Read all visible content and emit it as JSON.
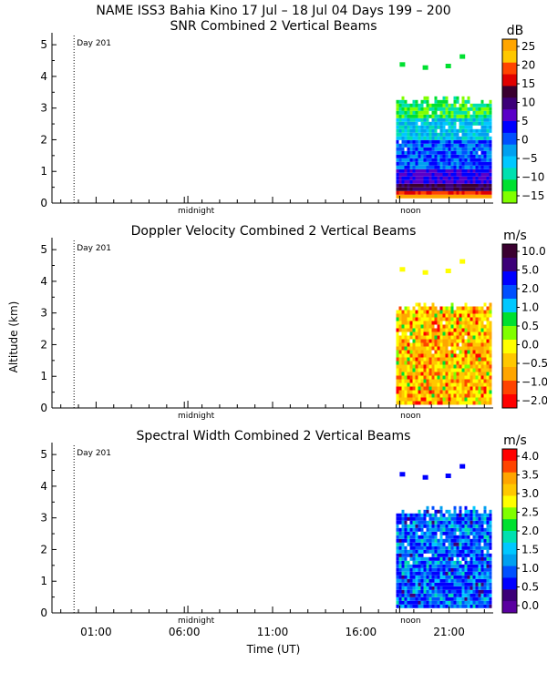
{
  "figure": {
    "title": "NAME ISS3 Bahia Kino   17 Jul – 18 Jul 04 Days 199 – 200",
    "xlabel": "Time (UT)",
    "ylabel": "Altitude (km)",
    "day_marker": "Day 201",
    "x_ticks": [
      "01:00",
      "06:00",
      "11:00",
      "16:00",
      "21:00"
    ],
    "minor_labels": [
      "midnight",
      "noon"
    ],
    "y_ticks": [
      "0",
      "1",
      "2",
      "3",
      "4",
      "5"
    ]
  },
  "chart_data": [
    {
      "type": "heatmap",
      "title": "SNR Combined 2 Vertical Beams",
      "unit": "dB",
      "ylim": [
        0,
        5
      ],
      "data_time_range": [
        "18:00",
        "24:00"
      ],
      "data_altitude_range_km": [
        0.15,
        3.3
      ],
      "colorbar_ticks": [
        "25",
        "20",
        "15",
        "10",
        "5",
        "0",
        "−5",
        "−10",
        "−15"
      ],
      "colorbar_colors": [
        "#ffa500",
        "#ffc800",
        "#ff4400",
        "#e00000",
        "#3a0030",
        "#3c0078",
        "#5a00c8",
        "#0000ff",
        "#0050ff",
        "#00a0f0",
        "#00c8ff",
        "#00e0b0",
        "#00e030",
        "#80ff00"
      ]
    },
    {
      "type": "heatmap",
      "title": "Doppler Velocity Combined 2 Vertical Beams",
      "unit": "m/s",
      "ylim": [
        0,
        5
      ],
      "data_time_range": [
        "18:00",
        "24:00"
      ],
      "data_altitude_range_km": [
        0.1,
        3.3
      ],
      "colorbar_ticks": [
        "10.0",
        "5.0",
        "2.0",
        "1.0",
        "0.5",
        "0.0",
        "−0.5",
        "−1.0",
        "−2.0"
      ],
      "colorbar_colors": [
        "#3a0030",
        "#3c0078",
        "#0000ff",
        "#0050ff",
        "#00c8ff",
        "#00e030",
        "#80ff00",
        "#ffff00",
        "#ffc800",
        "#ffa500",
        "#ff4400",
        "#ff0000"
      ]
    },
    {
      "type": "heatmap",
      "title": "Spectral Width Combined 2 Vertical Beams",
      "unit": "m/s",
      "ylim": [
        0,
        5
      ],
      "data_time_range": [
        "18:00",
        "24:00"
      ],
      "data_altitude_range_km": [
        0.15,
        3.3
      ],
      "colorbar_ticks": [
        "4.0",
        "3.5",
        "3.0",
        "2.5",
        "2.0",
        "1.5",
        "1.0",
        "0.5",
        "0.0"
      ],
      "colorbar_colors": [
        "#ff0000",
        "#ff4400",
        "#ffa500",
        "#ffc800",
        "#ffff00",
        "#80ff00",
        "#00e030",
        "#00e0b0",
        "#00c8ff",
        "#00a0f0",
        "#0050ff",
        "#0000ff",
        "#3c0078",
        "#5a00a0"
      ]
    }
  ]
}
